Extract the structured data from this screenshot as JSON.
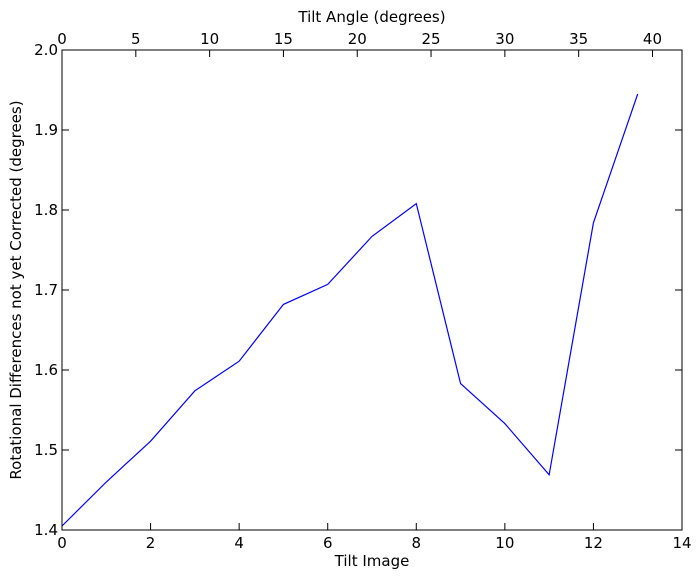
{
  "chart_data": {
    "type": "line",
    "xlabel": "Tilt Image",
    "ylabel": "Rotational Differences not yet Corrected (degrees)",
    "x2label": "Tilt Angle (degrees)",
    "xlim": [
      0,
      14
    ],
    "ylim": [
      1.4,
      2.0
    ],
    "x2lim": [
      0,
      42
    ],
    "xticks": [
      "0",
      "2",
      "4",
      "6",
      "8",
      "10",
      "12",
      "14"
    ],
    "yticks": [
      "1.4",
      "1.5",
      "1.6",
      "1.7",
      "1.8",
      "1.9",
      "2.0"
    ],
    "x2ticks": [
      "0",
      "5",
      "10",
      "15",
      "20",
      "25",
      "30",
      "35",
      "40"
    ],
    "grid": false,
    "series": [
      {
        "color": "#0000ff",
        "x": [
          0,
          1,
          2,
          3,
          4,
          5,
          6,
          7,
          8,
          9,
          10,
          11,
          12,
          13
        ],
        "y": [
          1.405,
          1.46,
          1.511,
          1.574,
          1.611,
          1.682,
          1.707,
          1.767,
          1.808,
          1.583,
          1.533,
          1.469,
          1.784,
          1.945
        ]
      }
    ]
  }
}
